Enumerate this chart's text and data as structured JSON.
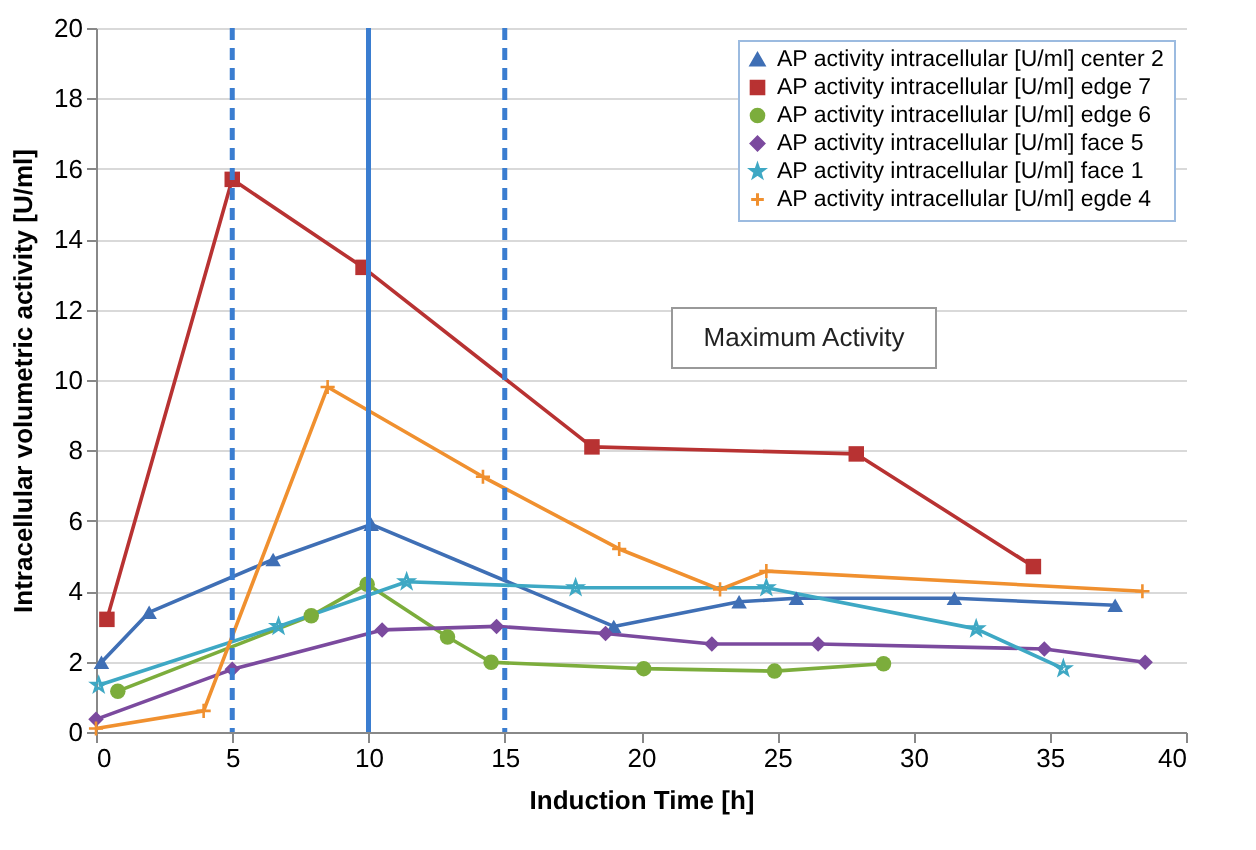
{
  "chart_data": {
    "type": "line",
    "xlabel": "Induction Time [h]",
    "ylabel": "Intracellular volumetric activity [U/ml]",
    "xlim": [
      0,
      40
    ],
    "xticks": [
      0,
      5,
      10,
      15,
      20,
      25,
      30,
      35,
      40
    ],
    "ylim": [
      0,
      20
    ],
    "yticks": [
      0,
      2,
      4,
      6,
      8,
      10,
      12,
      14,
      16,
      18,
      20
    ],
    "grid": "y",
    "legend": "top right",
    "series": [
      {
        "name": "AP activity intracellular [U/ml] center 2",
        "color": "#3f6fb5",
        "marker": "triangle",
        "x": [
          0.2,
          1.95,
          6.5,
          10.1,
          19.0,
          23.6,
          25.7,
          31.5,
          37.4
        ],
        "values": [
          1.98,
          3.4,
          4.9,
          5.9,
          3.0,
          3.7,
          3.8,
          3.8,
          3.6
        ]
      },
      {
        "name": "AP activity intracellular [U/ml] edge 7",
        "color": "#b83232",
        "marker": "square",
        "x": [
          0.4,
          5.0,
          9.8,
          18.2,
          27.9,
          34.4
        ],
        "values": [
          3.2,
          15.7,
          13.2,
          8.1,
          7.9,
          4.7
        ]
      },
      {
        "name": "AP activity intracellular [U/ml] edge 6",
        "color": "#7cad3c",
        "marker": "circle",
        "x": [
          0.8,
          7.9,
          9.95,
          12.9,
          14.5,
          20.1,
          24.9,
          28.9
        ],
        "values": [
          1.16,
          3.3,
          4.2,
          2.7,
          1.98,
          1.8,
          1.73,
          1.94
        ]
      },
      {
        "name": "AP activity intracellular [U/ml] face 5",
        "color": "#7b4a9e",
        "marker": "diamond",
        "x": [
          0,
          5.0,
          10.5,
          14.7,
          18.7,
          22.6,
          26.5,
          34.8,
          38.5
        ],
        "values": [
          0.36,
          1.78,
          2.9,
          3.0,
          2.8,
          2.5,
          2.5,
          2.36,
          1.98
        ]
      },
      {
        "name": "AP activity intracellular [U/ml] face 1",
        "color": "#3ea8c4",
        "marker": "star",
        "x": [
          0.1,
          6.7,
          11.4,
          17.6,
          24.6,
          32.3,
          35.5
        ],
        "values": [
          1.33,
          3.0,
          4.27,
          4.1,
          4.1,
          2.93,
          1.8
        ]
      },
      {
        "name": "AP activity intracellular [U/ml] egde 4",
        "color": "#f0902f",
        "marker": "cross",
        "x": [
          0,
          3.95,
          8.5,
          14.2,
          19.2,
          22.9,
          24.6,
          38.4
        ],
        "values": [
          0.1,
          0.6,
          9.8,
          7.25,
          5.2,
          4.05,
          4.57,
          4.0
        ]
      }
    ],
    "ref_lines": [
      {
        "axis": "x",
        "value": 5,
        "color": "#3a7dd0",
        "line_style": "dashed"
      },
      {
        "axis": "x",
        "value": 10,
        "color": "#3a7dd0",
        "line_style": "solid"
      },
      {
        "axis": "x",
        "value": 15,
        "color": "#3a7dd0",
        "line_style": "dashed"
      }
    ],
    "annotations": [
      "Maximum Activity"
    ]
  }
}
